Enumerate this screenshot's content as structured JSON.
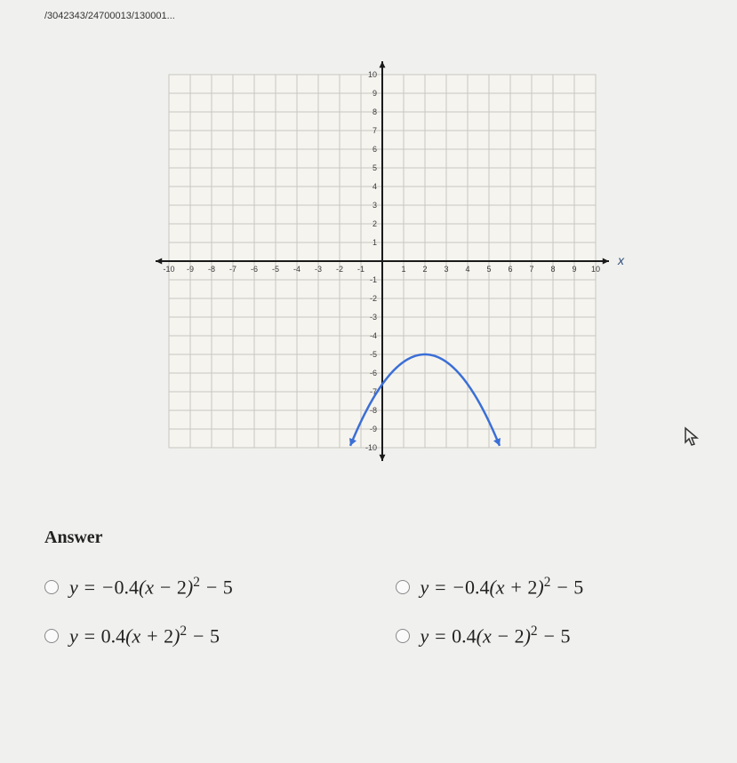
{
  "breadcrumb": "/3042343/24700013/130001...",
  "graph": {
    "type": "parabola",
    "xmin": -10,
    "xmax": 10,
    "ymin": -10,
    "ymax": 10,
    "grid_step": 1,
    "x_ticks": {
      "neg": [
        "-10",
        "-9",
        "-8",
        "-7",
        "-6",
        "-5",
        "-4",
        "-3",
        "-2",
        "-1"
      ],
      "pos": [
        "1",
        "2",
        "3",
        "4",
        "5",
        "6",
        "7",
        "8",
        "9",
        "10"
      ]
    },
    "y_ticks": {
      "neg": [
        "-1",
        "-2",
        "-3",
        "-4",
        "-5",
        "-6",
        "-7",
        "-8",
        "-9",
        "-10"
      ],
      "pos": [
        "1",
        "2",
        "3",
        "4",
        "5",
        "6",
        "7",
        "8",
        "9",
        "10"
      ]
    },
    "x_axis_label": "x",
    "curve": {
      "vertex_x": 2,
      "vertex_y": -5,
      "a": -0.4,
      "color": "#3b6fd6",
      "width": 2.5,
      "x_draw_min": -1.5,
      "x_draw_max": 5.5
    },
    "background": "#f6f4ef",
    "grid_color": "#c8c6c0",
    "axis_color": "#1a1a1a",
    "tick_font_size": 9,
    "tick_color": "#3a3a3a"
  },
  "answer": {
    "heading": "Answer",
    "options": [
      {
        "id": "opt-a",
        "display": "y = -0.4(x - 2)^2 - 5"
      },
      {
        "id": "opt-b",
        "display": "y = -0.4(x + 2)^2 - 5"
      },
      {
        "id": "opt-c",
        "display": "y = 0.4(x + 2)^2 - 5"
      },
      {
        "id": "opt-d",
        "display": "y = 0.4(x - 2)^2 - 5"
      }
    ]
  }
}
